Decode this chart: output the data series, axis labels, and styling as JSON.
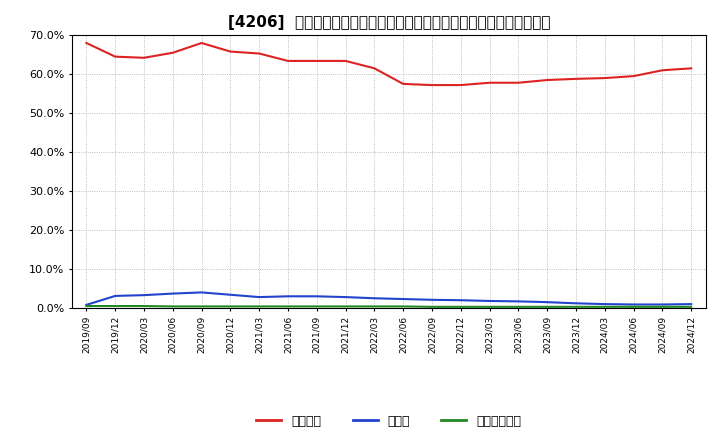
{
  "title": "[4206]  自己資本、のれん、繰延税金資産の総資産に対する比率の推移",
  "x_labels": [
    "2019/09",
    "2019/12",
    "2020/03",
    "2020/06",
    "2020/09",
    "2020/12",
    "2021/03",
    "2021/06",
    "2021/09",
    "2021/12",
    "2022/03",
    "2022/06",
    "2022/09",
    "2022/12",
    "2023/03",
    "2023/06",
    "2023/09",
    "2023/12",
    "2024/03",
    "2024/06",
    "2024/09",
    "2024/12"
  ],
  "equity": [
    68.0,
    64.5,
    64.2,
    65.5,
    68.0,
    65.8,
    65.3,
    63.4,
    63.4,
    63.4,
    61.5,
    57.5,
    57.2,
    57.2,
    57.8,
    57.8,
    58.5,
    58.8,
    59.0,
    59.5,
    61.0,
    61.5
  ],
  "noren": [
    0.8,
    3.1,
    3.3,
    3.7,
    4.0,
    3.4,
    2.8,
    3.0,
    3.0,
    2.8,
    2.5,
    2.3,
    2.1,
    2.0,
    1.8,
    1.7,
    1.5,
    1.2,
    1.0,
    0.9,
    0.9,
    1.0
  ],
  "deferred_tax": [
    0.5,
    0.5,
    0.5,
    0.4,
    0.4,
    0.4,
    0.4,
    0.4,
    0.4,
    0.4,
    0.4,
    0.4,
    0.3,
    0.3,
    0.3,
    0.3,
    0.3,
    0.3,
    0.3,
    0.3,
    0.3,
    0.3
  ],
  "equity_color": "#dd2222",
  "noren_color": "#2244cc",
  "deferred_color": "#228822",
  "legend_labels": [
    "自己資本",
    "のれん",
    "繰延税金資産"
  ],
  "ylim": [
    0.0,
    70.0
  ],
  "yticks": [
    0.0,
    10.0,
    20.0,
    30.0,
    40.0,
    50.0,
    60.0,
    70.0
  ],
  "background_color": "#ffffff",
  "grid_color": "#aaaaaa"
}
